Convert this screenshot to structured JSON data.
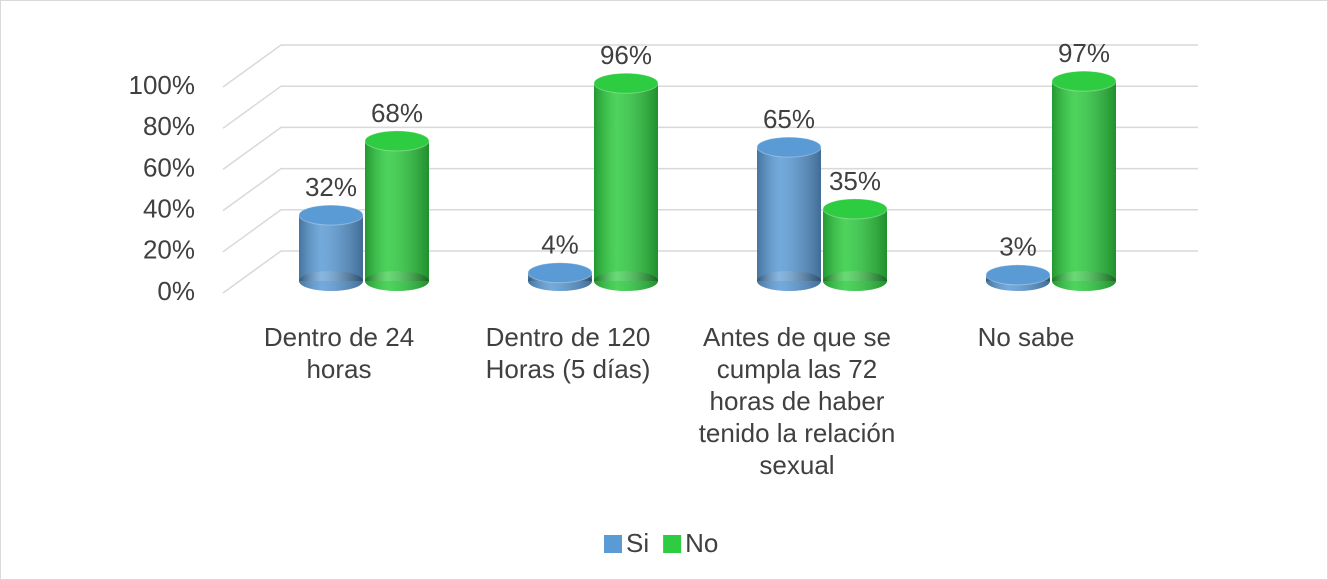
{
  "chart_data": {
    "type": "bar3d",
    "categories": [
      "Dentro de 24 horas",
      "Dentro de 120 Horas (5 días)",
      "Antes de que se cumpla las 72 horas de haber tenido la relación sexual",
      "No sabe"
    ],
    "series": [
      {
        "name": "Si",
        "color": "#5b9bd5",
        "values": [
          32,
          4,
          65,
          3
        ],
        "value_labels": [
          "32%",
          "4%",
          "65%",
          "3%"
        ]
      },
      {
        "name": "No",
        "color": "#2ecc40",
        "values": [
          68,
          96,
          35,
          97
        ],
        "value_labels": [
          "68%",
          "96%",
          "35%",
          "97%"
        ]
      }
    ],
    "ylim": [
      0,
      100
    ],
    "yticks": [
      {
        "value": 0,
        "label": "0%"
      },
      {
        "value": 20,
        "label": "20%"
      },
      {
        "value": 40,
        "label": "40%"
      },
      {
        "value": 60,
        "label": "60%"
      },
      {
        "value": 80,
        "label": "80%"
      },
      {
        "value": 100,
        "label": "100%"
      }
    ],
    "grid": true,
    "legend": "bottom"
  }
}
